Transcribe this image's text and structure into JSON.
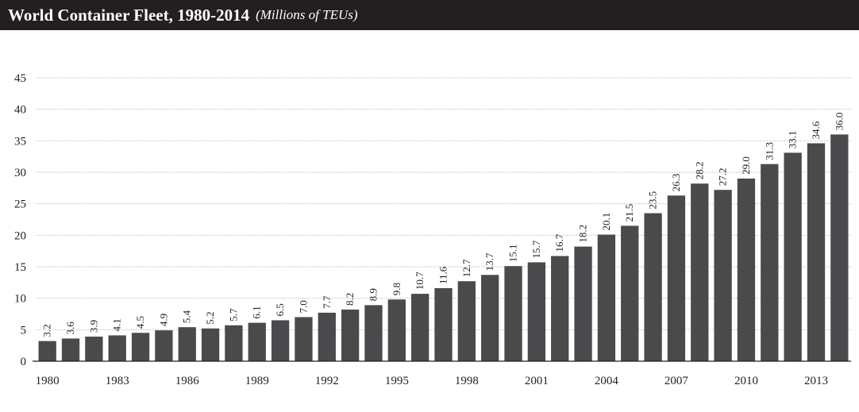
{
  "title": "World Container Fleet, 1980-2014",
  "subtitle": "(Millions of TEUs)",
  "colors": {
    "bar": "#4a4a4c",
    "title_bg": "#231f20",
    "grid": "#bdbdbd"
  },
  "chart_data": {
    "type": "bar",
    "title": "World Container Fleet, 1980-2014",
    "subtitle": "(Millions of TEUs)",
    "xlabel": "",
    "ylabel": "",
    "ylim": [
      0,
      45
    ],
    "yticks": [
      0,
      5,
      10,
      15,
      20,
      25,
      30,
      35,
      40,
      45
    ],
    "grid": true,
    "legend": "none",
    "categories": [
      "1980",
      "1981",
      "1982",
      "1983",
      "1984",
      "1985",
      "1986",
      "1987",
      "1988",
      "1989",
      "1990",
      "1991",
      "1992",
      "1993",
      "1994",
      "1995",
      "1996",
      "1997",
      "1998",
      "1999",
      "2000",
      "2001",
      "2002",
      "2003",
      "2004",
      "2005",
      "2006",
      "2007",
      "2008",
      "2009",
      "2010",
      "2011",
      "2012",
      "2013",
      "2014"
    ],
    "xtick_labels_shown": [
      "1980",
      "1983",
      "1986",
      "1989",
      "1992",
      "1995",
      "1998",
      "2001",
      "2004",
      "2007",
      "2010",
      "2013"
    ],
    "values": [
      3.2,
      3.6,
      3.9,
      4.1,
      4.5,
      4.9,
      5.4,
      5.2,
      5.7,
      6.1,
      6.5,
      7.0,
      7.7,
      8.2,
      8.9,
      9.8,
      10.7,
      11.6,
      12.7,
      13.7,
      15.1,
      15.7,
      16.7,
      18.2,
      20.1,
      21.5,
      23.5,
      26.3,
      28.2,
      27.2,
      29.0,
      31.3,
      33.1,
      34.6,
      36.0
    ],
    "value_labels": [
      "3.2",
      "3.6",
      "3.9",
      "4.1",
      "4.5",
      "4.9",
      "5.4",
      "5.2",
      "5.7",
      "6.1",
      "6.5",
      "7.0",
      "7.7",
      "8.2",
      "8.9",
      "9.8",
      "10.7",
      "11.6",
      "12.7",
      "13.7",
      "15.1",
      "15.7",
      "16.7",
      "18.2",
      "20.1",
      "21.5",
      "23.5",
      "26.3",
      "28.2",
      "27.2",
      "29.0",
      "31.3",
      "33.1",
      "34.6",
      "36.0"
    ]
  }
}
